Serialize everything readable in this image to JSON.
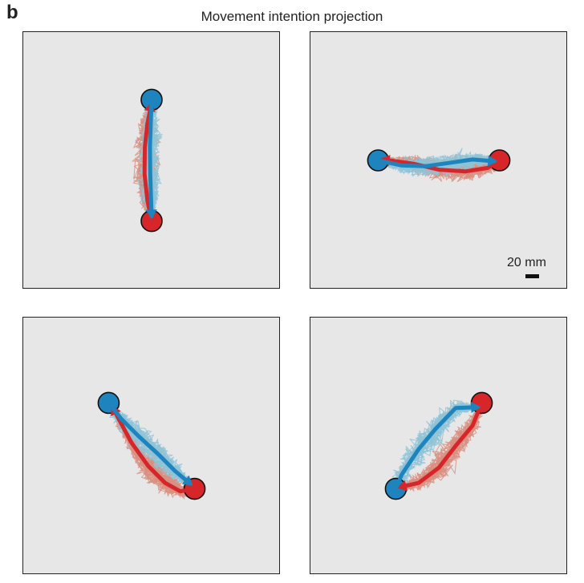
{
  "figure": {
    "panel_letter": "b",
    "title": "Movement intention projection"
  },
  "colors": {
    "panel_bg": "#e7e7e8",
    "red_trace": "#d9907f",
    "blue_trace": "#8fc3d6",
    "red_main": "#d7262a",
    "blue_main": "#1d84be"
  },
  "scale_bar": {
    "label": "20 mm",
    "length_mm": 20
  },
  "chart_data": {
    "type": "trajectory",
    "units": "mm",
    "trace_series": [
      "red",
      "blue"
    ],
    "panels": [
      {
        "name": "top-left",
        "blue_target": [
          0,
          36
        ],
        "red_target": [
          0,
          -36
        ],
        "blue_path": [
          [
            0,
            36
          ],
          [
            -0.5,
            22
          ],
          [
            -1,
            8
          ],
          [
            -0.8,
            -8
          ],
          [
            -0.4,
            -22
          ],
          [
            0,
            -33
          ]
        ],
        "red_path": [
          [
            0,
            -36
          ],
          [
            -2.5,
            -24
          ],
          [
            -4.2,
            -8
          ],
          [
            -4,
            8
          ],
          [
            -2.5,
            22
          ],
          [
            -0.3,
            33
          ]
        ]
      },
      {
        "name": "top-right",
        "blue_target": [
          -36,
          0
        ],
        "red_target": [
          36,
          0
        ],
        "blue_path": [
          [
            -36,
            0
          ],
          [
            -22,
            -3
          ],
          [
            -8,
            -3.5
          ],
          [
            6,
            -1.5
          ],
          [
            20,
            0.5
          ],
          [
            33,
            -0.5
          ]
        ],
        "red_path": [
          [
            36,
            0
          ],
          [
            29,
            -4.5
          ],
          [
            16,
            -6.5
          ],
          [
            0,
            -5.5
          ],
          [
            -15,
            -2
          ],
          [
            -33,
            0.5
          ]
        ]
      },
      {
        "name": "bottom-left",
        "blue_target": [
          -25.5,
          25.5
        ],
        "red_target": [
          25.5,
          -25.5
        ],
        "blue_path": [
          [
            -25.5,
            25.5
          ],
          [
            -18,
            16
          ],
          [
            -8,
            6
          ],
          [
            4,
            -5
          ],
          [
            14,
            -15
          ],
          [
            23,
            -22.5
          ]
        ],
        "red_path": [
          [
            25.5,
            -25.5
          ],
          [
            17,
            -27
          ],
          [
            8,
            -22
          ],
          [
            -2,
            -12
          ],
          [
            -12,
            2
          ],
          [
            -23,
            22.5
          ]
        ]
      },
      {
        "name": "bottom-right",
        "blue_target": [
          -25.5,
          -25.5
        ],
        "red_target": [
          25.5,
          25.5
        ],
        "blue_path": [
          [
            -25.5,
            -25.5
          ],
          [
            -22,
            -17
          ],
          [
            -12,
            -2
          ],
          [
            -2,
            10
          ],
          [
            10,
            22.5
          ],
          [
            23,
            23
          ]
        ],
        "red_path": [
          [
            25.5,
            25.5
          ],
          [
            20,
            12
          ],
          [
            10,
            0
          ],
          [
            0,
            -13
          ],
          [
            -12,
            -22
          ],
          [
            -23,
            -24.5
          ]
        ]
      }
    ]
  }
}
